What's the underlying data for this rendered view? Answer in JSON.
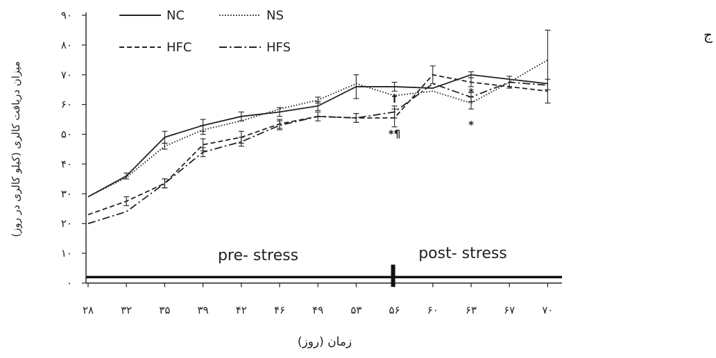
{
  "panel_label": "ج",
  "chart_data": {
    "type": "line",
    "title": "",
    "xlabel": "زمان (روز)",
    "ylabel": "میزان دریافت کالری (کیلو کالری در روز)",
    "categories": [
      "۲۸",
      "۳۲",
      "۳۵",
      "۳۹",
      "۴۲",
      "۴۶",
      "۴۹",
      "۵۳",
      "۵۶",
      "۶۰",
      "۶۳",
      "۶۷",
      "۷۰"
    ],
    "yticks": [
      "۰",
      "۱۰",
      "۲۰",
      "۳۰",
      "۴۰",
      "۵۰",
      "۶۰",
      "۷۰",
      "۸۰",
      "۹۰"
    ],
    "ylim": [
      0,
      90
    ],
    "grid": false,
    "legend_position": "top-left",
    "series": [
      {
        "name": "NC",
        "style": "solid",
        "values": [
          29,
          36,
          49,
          53,
          56,
          57.5,
          59.5,
          66,
          66,
          65.5,
          70,
          68.5,
          67
        ],
        "errors": [
          0,
          1,
          2,
          2,
          1.5,
          1.5,
          1.5,
          4,
          1.5,
          0,
          1,
          0,
          0
        ]
      },
      {
        "name": "NS",
        "style": "dotted",
        "values": [
          29,
          35.5,
          46,
          51.5,
          54.5,
          58.5,
          61.5,
          67,
          63,
          64.5,
          60.5,
          67.5,
          75
        ],
        "errors": [
          0,
          0,
          1,
          1.5,
          0,
          0,
          1,
          0,
          0,
          0,
          2,
          0,
          10
        ]
      },
      {
        "name": "HFC",
        "style": "dashed",
        "values": [
          23,
          27.5,
          33.5,
          46.5,
          49,
          53.5,
          56,
          55.5,
          55.5,
          70,
          67.5,
          66,
          64.5
        ],
        "errors": [
          0,
          1.5,
          1.5,
          2,
          2,
          1.5,
          0,
          1.5,
          3,
          3,
          1.5,
          0,
          4
        ]
      },
      {
        "name": "HFS",
        "style": "dashdot",
        "values": [
          20,
          24,
          33.5,
          44,
          47.5,
          53,
          56,
          55.5,
          57.5,
          67,
          62.5,
          67.5,
          66.5
        ],
        "errors": [
          0,
          0,
          1.5,
          1.5,
          1.5,
          1.5,
          1.5,
          1.5,
          2,
          0,
          1.5,
          2,
          0
        ]
      }
    ],
    "annotations": [
      {
        "text": "†",
        "category": "۵۶",
        "value": 61
      },
      {
        "text": "*¶",
        "category": "۵۶",
        "value": 49
      },
      {
        "text": "*",
        "category": "۶۳",
        "value": 63
      },
      {
        "text": "*",
        "category": "۶۳",
        "value": 52
      }
    ],
    "phases": {
      "pre_label": "pre- stress",
      "post_label": "post- stress",
      "divider_category": "۵۶",
      "baseline_value": 2
    }
  }
}
